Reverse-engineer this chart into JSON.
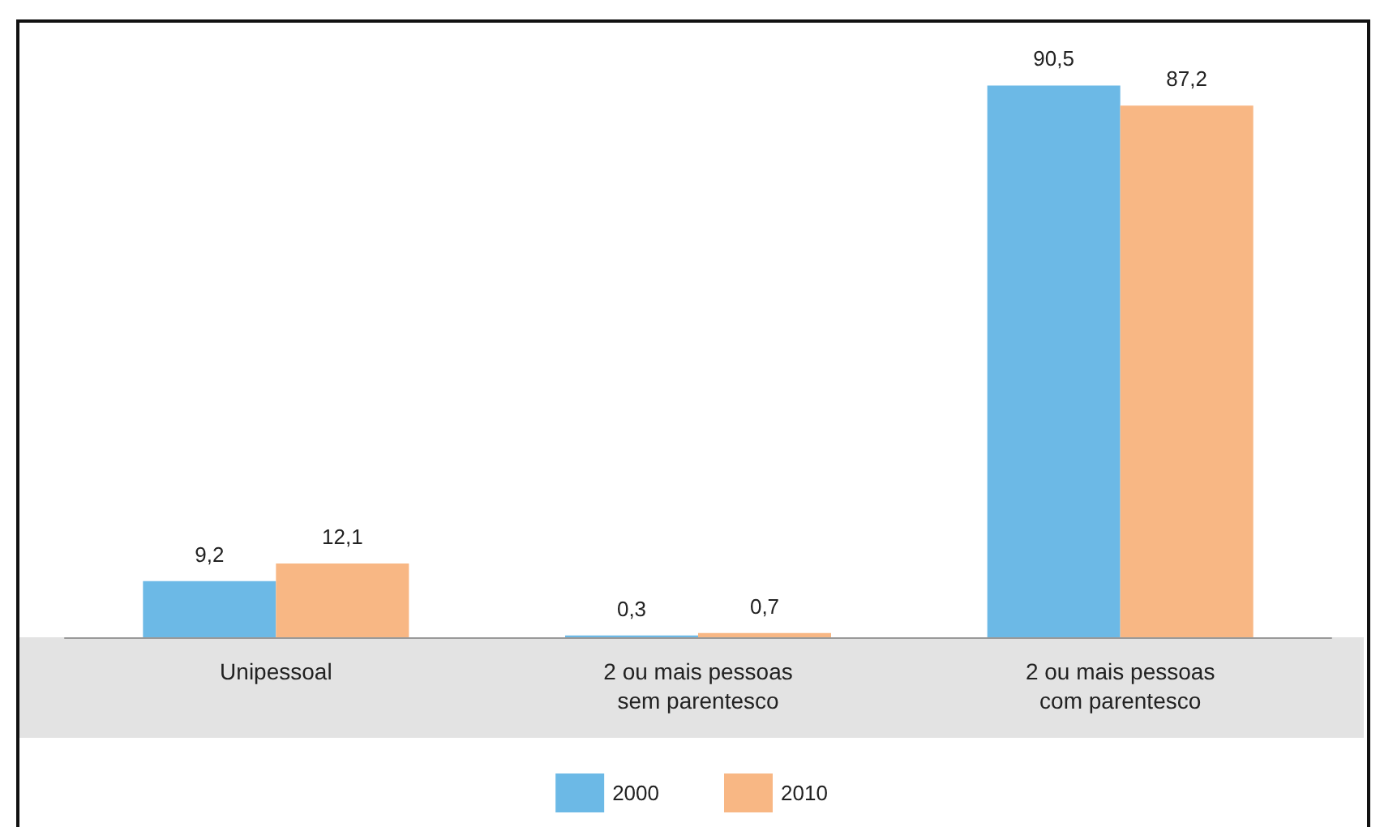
{
  "chart_data": {
    "type": "bar",
    "categories": [
      "Unipessoal",
      "2 ou mais pessoas\nsem parentesco",
      "2 ou mais pessoas\ncom parentesco"
    ],
    "series": [
      {
        "name": "2000",
        "color": "#6cb9e6",
        "values": [
          9.2,
          0.3,
          90.5
        ],
        "value_labels": [
          "9,2",
          "0,3",
          "90,5"
        ]
      },
      {
        "name": "2010",
        "color": "#f8b784",
        "values": [
          12.1,
          0.7,
          87.2
        ],
        "value_labels": [
          "12,1",
          "0,7",
          "87,2"
        ]
      }
    ],
    "legend": "bottom",
    "grid": false
  }
}
